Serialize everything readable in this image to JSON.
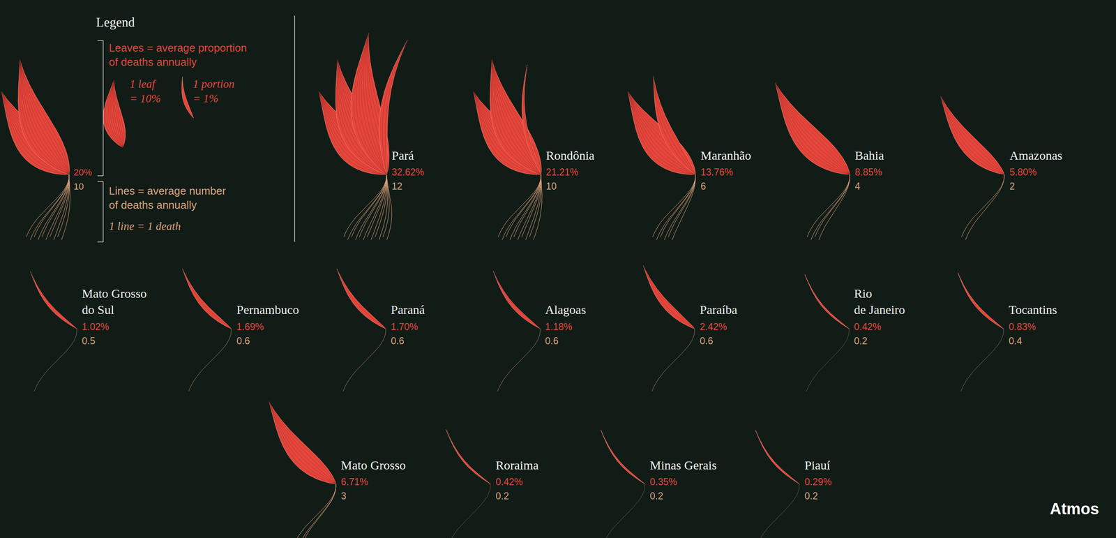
{
  "chart_data": {
    "type": "pictogram",
    "tick_labels": false,
    "data_labels": true,
    "categories": [
      "Pará",
      "Rondônia",
      "Maranhão",
      "Bahia",
      "Amazonas",
      "Mato Grosso\ndo Sul",
      "Pernambuco",
      "Paraná",
      "Alagoas",
      "Paraíba",
      "Rio\nde Janeiro",
      "Tocantins",
      "Mato Grosso",
      "Roraima",
      "Minas Gerais",
      "Piauí"
    ],
    "series": [
      {
        "name": "Leaves = average proportion\nof deaths annually",
        "color": "#e4463b",
        "values": [
          32.62,
          21.21,
          13.76,
          8.85,
          5.8,
          1.02,
          1.69,
          1.7,
          1.18,
          2.42,
          0.42,
          0.83,
          6.71,
          0.42,
          0.35,
          0.29
        ],
        "value_labels": [
          "32.62%",
          "21.21%",
          "13.76%",
          "8.85%",
          "5.80%",
          "1.02%",
          "1.69%",
          "1.70%",
          "1.18%",
          "2.42%",
          "0.42%",
          "0.83%",
          "6.71%",
          "0.42%",
          "0.35%",
          "0.29%"
        ]
      },
      {
        "name": "Lines = average number\nof deaths annually",
        "color": "#dba27c",
        "values": [
          12,
          10,
          6,
          4,
          2,
          0.5,
          0.6,
          0.6,
          0.6,
          0.6,
          0.2,
          0.4,
          3,
          0.2,
          0.2,
          0.2
        ]
      }
    ],
    "scale_key": {
      "title": "Legend",
      "leaf": {
        "label": "1 leaf\n= 10%",
        "value": 10
      },
      "portion": {
        "label": "1 portion\n= 1%",
        "value": 1
      },
      "line": {
        "label": "1 line = 1 death",
        "value": 1
      },
      "example": {
        "proportion": 20,
        "proportion_label": "20%",
        "deaths": 10
      }
    },
    "source": "Atmos"
  }
}
